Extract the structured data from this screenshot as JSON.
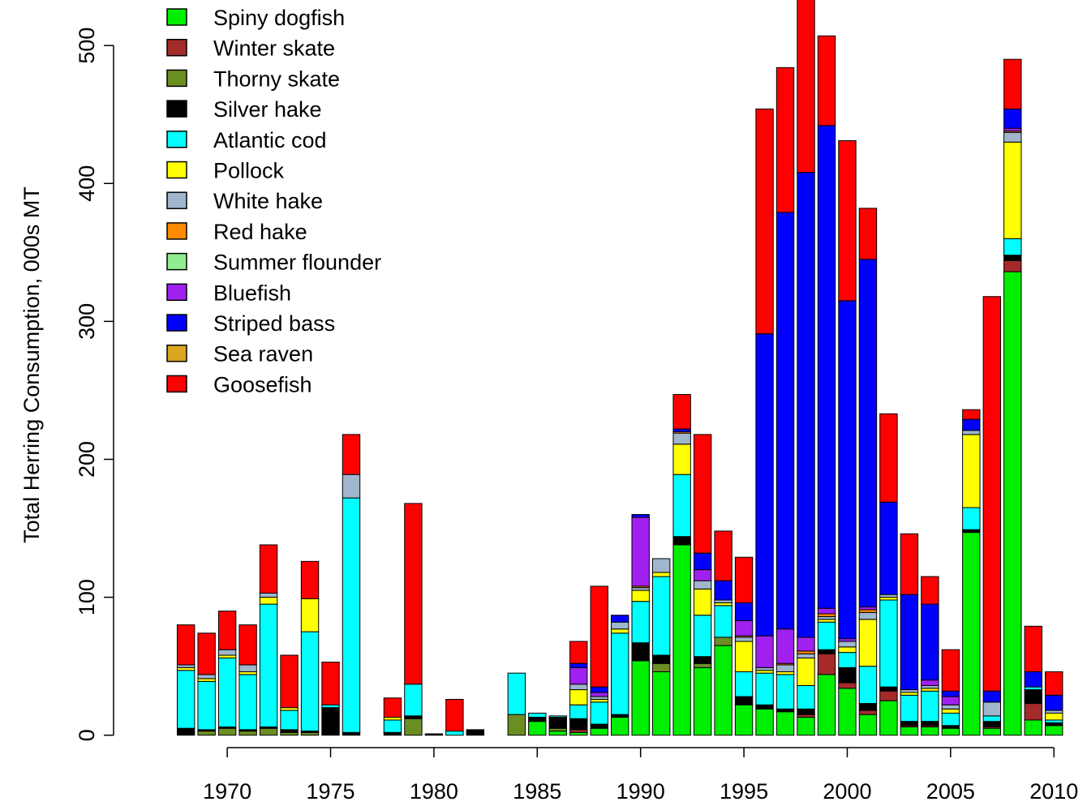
{
  "chart_data": {
    "type": "stacked-bar",
    "y_label": "Total Herring Consumption, 000s MT",
    "x": [
      1968,
      1969,
      1970,
      1971,
      1972,
      1973,
      1974,
      1975,
      1976,
      1977,
      1978,
      1979,
      1980,
      1981,
      1982,
      1983,
      1984,
      1985,
      1986,
      1987,
      1988,
      1989,
      1990,
      1991,
      1992,
      1993,
      1994,
      1995,
      1996,
      1997,
      1998,
      1999,
      2000,
      2001,
      2002,
      2003,
      2004,
      2005,
      2006,
      2007,
      2008,
      2009,
      2010
    ],
    "xlim": [
      1964.5,
      2011.6
    ],
    "xticks": [
      1970,
      1975,
      1980,
      1985,
      1990,
      1995,
      2000,
      2005,
      2010
    ],
    "ylim": [
      -9,
      533
    ],
    "yticks": [
      0,
      100,
      200,
      300,
      400,
      500
    ],
    "legend_position": "top-left",
    "series": [
      {
        "name": "Spiny dogfish",
        "color": "#00ee00",
        "values": [
          0,
          0,
          0,
          0,
          0,
          0,
          0,
          0,
          0,
          0,
          0,
          0,
          0,
          0,
          0,
          0,
          0,
          10,
          3,
          2,
          5,
          13,
          54,
          46,
          138,
          49,
          65,
          22,
          19,
          17,
          13,
          44,
          34,
          15,
          25,
          6,
          6,
          5,
          147,
          5,
          336,
          11,
          7
        ]
      },
      {
        "name": "Winter skate",
        "color": "#a52a2a",
        "values": [
          0,
          0,
          0,
          0,
          0,
          0,
          0,
          0,
          0,
          0,
          0,
          0,
          0,
          0,
          0,
          0,
          0,
          0,
          0,
          2,
          0,
          0,
          0,
          0,
          0,
          0,
          0,
          0,
          0,
          0,
          2,
          15,
          4,
          3,
          7,
          1,
          1,
          0,
          0,
          1,
          8,
          12,
          0
        ]
      },
      {
        "name": "Thorny skate",
        "color": "#6b8e23",
        "values": [
          0,
          3,
          5,
          3,
          5,
          2,
          2,
          0,
          0,
          0,
          0,
          12,
          0,
          0,
          0,
          0,
          15,
          0,
          2,
          0,
          0,
          0,
          0,
          6,
          0,
          3,
          6,
          0,
          0,
          0,
          0,
          0,
          0,
          0,
          0,
          0,
          0,
          0,
          0,
          0,
          0,
          0,
          0
        ]
      },
      {
        "name": "Silver hake",
        "color": "#000000",
        "values": [
          5,
          1,
          1,
          1,
          1,
          2,
          1,
          20,
          2,
          0,
          2,
          2,
          1,
          0,
          4,
          0,
          0,
          3,
          8,
          8,
          3,
          2,
          13,
          6,
          6,
          5,
          0,
          6,
          3,
          2,
          4,
          3,
          11,
          5,
          3,
          3,
          3,
          2,
          2,
          4,
          4,
          10,
          2
        ]
      },
      {
        "name": "Atlantic cod",
        "color": "#00ffff",
        "values": [
          42,
          35,
          50,
          40,
          89,
          14,
          72,
          2,
          170,
          0,
          9,
          23,
          0,
          3,
          0,
          0,
          30,
          3,
          1,
          10,
          16,
          59,
          30,
          57,
          45,
          30,
          23,
          18,
          23,
          25,
          17,
          20,
          11,
          27,
          63,
          19,
          22,
          9,
          16,
          4,
          12,
          2,
          2
        ]
      },
      {
        "name": "Pollock",
        "color": "#ffff00",
        "values": [
          2,
          2,
          2,
          2,
          5,
          2,
          24,
          0,
          0,
          0,
          2,
          0,
          0,
          0,
          0,
          0,
          0,
          0,
          0,
          11,
          2,
          3,
          8,
          3,
          22,
          19,
          2,
          22,
          2,
          2,
          20,
          2,
          4,
          34,
          2,
          2,
          2,
          3,
          53,
          0,
          70,
          0,
          5
        ]
      },
      {
        "name": "White hake",
        "color": "#9fb6cd",
        "values": [
          2,
          3,
          4,
          5,
          3,
          0,
          0,
          0,
          17,
          0,
          0,
          0,
          0,
          0,
          0,
          0,
          0,
          0,
          0,
          4,
          2,
          5,
          2,
          10,
          8,
          6,
          2,
          3,
          2,
          5,
          3,
          2,
          4,
          5,
          2,
          2,
          2,
          3,
          3,
          10,
          7,
          0,
          2
        ]
      },
      {
        "name": "Red hake",
        "color": "#ff8c00",
        "values": [
          0,
          0,
          0,
          0,
          0,
          0,
          0,
          0,
          0,
          0,
          0,
          0,
          0,
          0,
          0,
          0,
          0,
          0,
          0,
          0,
          0,
          0,
          1,
          0,
          1,
          0,
          0,
          1,
          0,
          1,
          2,
          2,
          0,
          2,
          0,
          0,
          0,
          0,
          0,
          0,
          1,
          0,
          0
        ]
      },
      {
        "name": "Summer flounder",
        "color": "#90ee90",
        "values": [
          0,
          0,
          0,
          0,
          0,
          0,
          0,
          0,
          0,
          0,
          0,
          0,
          0,
          0,
          0,
          0,
          0,
          0,
          0,
          0,
          0,
          0,
          0,
          0,
          0,
          0,
          0,
          0,
          0,
          0,
          0,
          0,
          0,
          0,
          0,
          0,
          0,
          0,
          0,
          0,
          0,
          0,
          0
        ]
      },
      {
        "name": "Bluefish",
        "color": "#a020f0",
        "values": [
          0,
          0,
          0,
          0,
          0,
          0,
          0,
          0,
          0,
          0,
          0,
          0,
          0,
          0,
          0,
          0,
          0,
          0,
          0,
          12,
          3,
          0,
          50,
          0,
          0,
          8,
          0,
          11,
          23,
          25,
          10,
          4,
          2,
          2,
          0,
          0,
          4,
          6,
          0,
          0,
          2,
          0,
          0
        ]
      },
      {
        "name": "Striped bass",
        "color": "#0000ff",
        "values": [
          0,
          0,
          0,
          0,
          0,
          0,
          0,
          0,
          0,
          0,
          0,
          0,
          0,
          0,
          0,
          0,
          0,
          0,
          0,
          3,
          4,
          5,
          2,
          0,
          2,
          12,
          14,
          13,
          219,
          302,
          337,
          350,
          245,
          252,
          67,
          69,
          55,
          4,
          8,
          8,
          14,
          11,
          11
        ]
      },
      {
        "name": "Sea raven",
        "color": "#daa520",
        "values": [
          0,
          0,
          0,
          0,
          0,
          0,
          0,
          0,
          0,
          0,
          0,
          0,
          0,
          0,
          0,
          0,
          0,
          0,
          0,
          0,
          0,
          0,
          0,
          0,
          0,
          0,
          0,
          0,
          0,
          0,
          0,
          0,
          0,
          0,
          0,
          0,
          0,
          0,
          0,
          0,
          0,
          0,
          0
        ]
      },
      {
        "name": "Goosefish",
        "color": "#ff0000",
        "values": [
          29,
          30,
          28,
          29,
          35,
          38,
          27,
          31,
          29,
          0,
          14,
          131,
          0,
          23,
          0,
          0,
          0,
          0,
          0,
          16,
          73,
          0,
          0,
          0,
          25,
          86,
          36,
          33,
          163,
          105,
          137,
          65,
          116,
          37,
          64,
          44,
          20,
          30,
          7,
          286,
          36,
          33,
          17
        ]
      }
    ]
  }
}
